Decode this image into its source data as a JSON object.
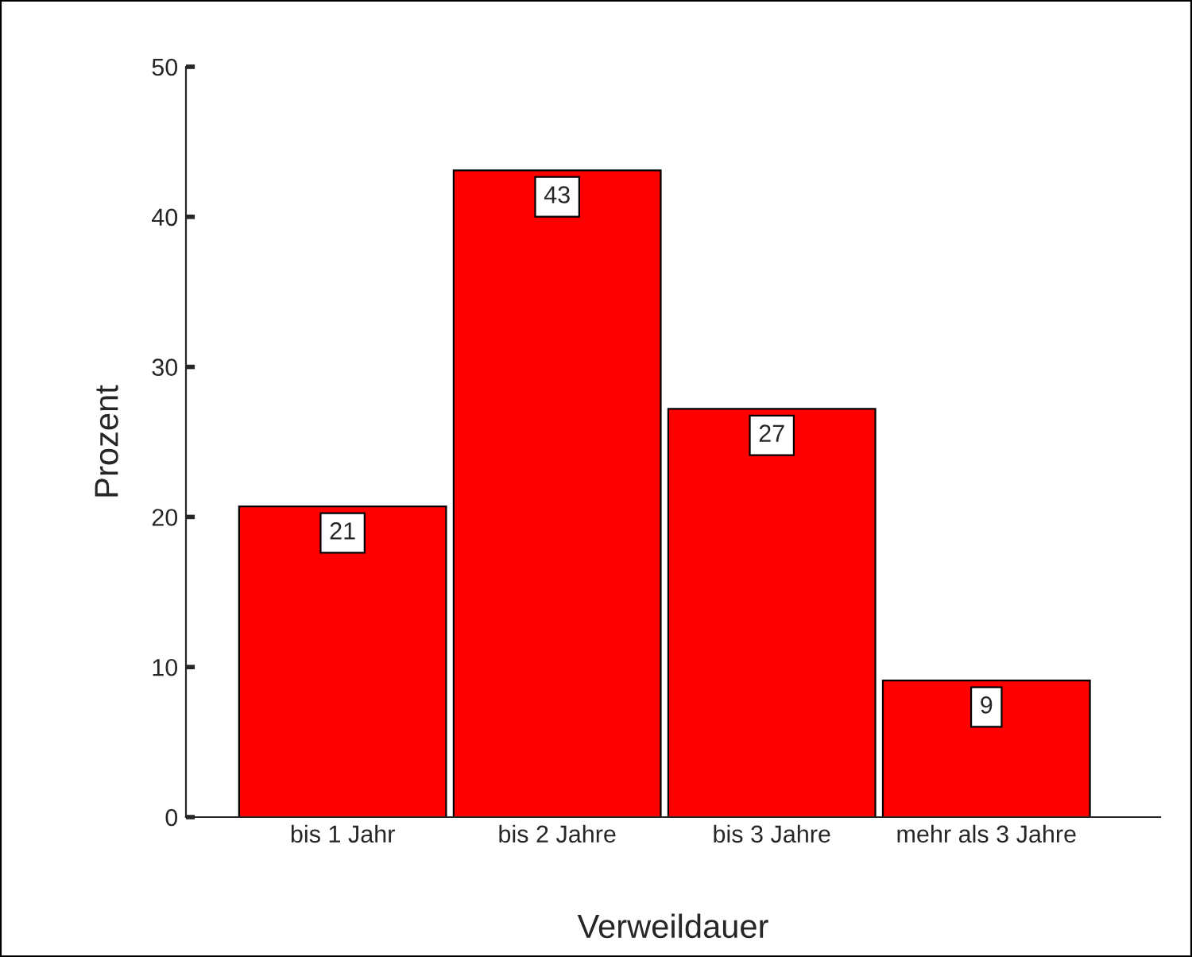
{
  "chart_data": {
    "type": "bar",
    "xlabel": "Verweildauer",
    "ylabel": "Prozent",
    "categories": [
      "bis 1 Jahr",
      "bis 2 Jahre",
      "bis 3 Jahre",
      "mehr als 3 Jahre"
    ],
    "values": [
      20.7,
      43.1,
      27.2,
      9.1
    ],
    "value_labels": [
      "21",
      "43",
      "27",
      "9"
    ],
    "color": "#ff0000",
    "ylim": [
      0,
      50
    ],
    "yticks": [
      0,
      10,
      20,
      30,
      40,
      50
    ],
    "grid": false,
    "legend": false
  }
}
